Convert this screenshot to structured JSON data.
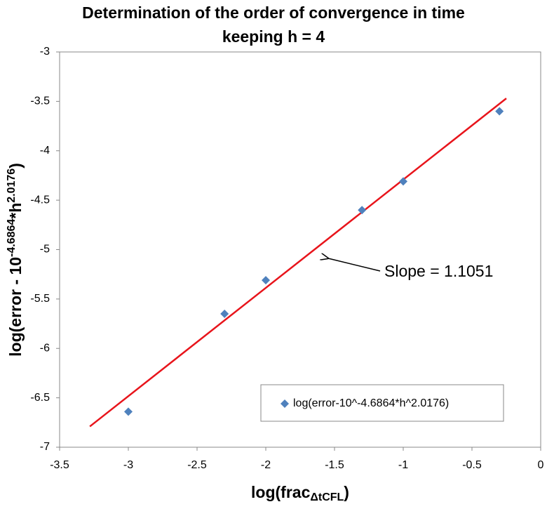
{
  "chart_data": {
    "type": "scatter",
    "title": [
      "Determination of the order of convergence in time",
      "keeping h = 4"
    ],
    "xlabel": [
      "log(frac",
      "ΔtCFL",
      ")"
    ],
    "ylabel": [
      "log(error - 10",
      "-4.6864",
      "*h",
      "2.0176",
      ")"
    ],
    "series": [
      {
        "name": "log(error-10^-4.6864*h^2.0176)",
        "color": "#4f81bd",
        "x": [
          -3,
          -2.3,
          -2,
          -1.3,
          -1,
          -0.3
        ],
        "values": [
          -6.64,
          -5.65,
          -5.31,
          -4.6,
          -4.31,
          -3.6
        ]
      }
    ],
    "trendline": {
      "x": [
        -3.28,
        -0.25
      ],
      "y": [
        -6.79,
        -3.47
      ],
      "color": "#e8141b"
    },
    "annotation": "Slope = 1.1051",
    "xlim": [
      -3.5,
      0
    ],
    "xticks": [
      -3.5,
      -3,
      -2.5,
      -2,
      -1.5,
      -1,
      -0.5,
      0
    ],
    "ylim": [
      -7,
      -3
    ],
    "yticks": [
      -7,
      -6.5,
      -6,
      -5.5,
      -5,
      -4.5,
      -4,
      -3.5,
      -3
    ],
    "legend": "bottom-right",
    "grid": false
  }
}
